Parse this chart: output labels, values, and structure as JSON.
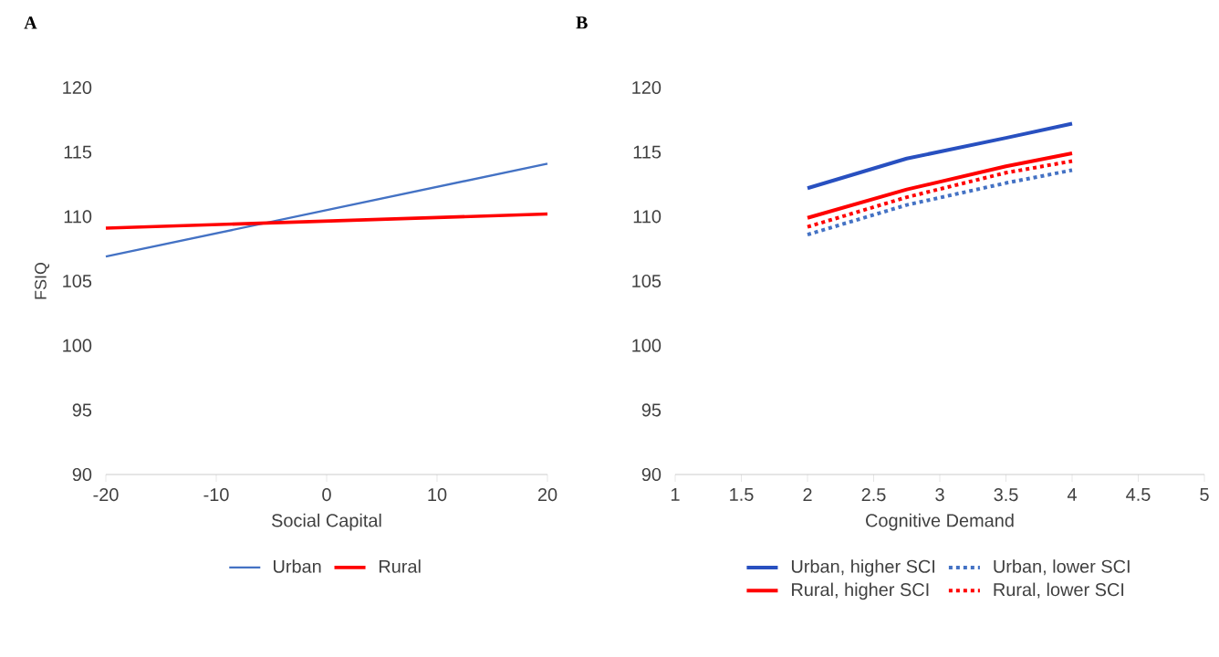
{
  "chart_data": [
    {
      "type": "line",
      "title": "A",
      "xlabel": "Social Capital",
      "ylabel": "FSIQ",
      "xlim": [
        -20,
        20
      ],
      "xticks": [
        -20,
        -10,
        0,
        10,
        20
      ],
      "ylim": [
        90,
        120
      ],
      "yticks": [
        90,
        95,
        100,
        105,
        110,
        115,
        120
      ],
      "grid": false,
      "legend": "bottom",
      "marker": "none",
      "x": [
        -20,
        20
      ],
      "series": [
        {
          "name": "Urban",
          "color": "#4472c4",
          "values": [
            106.9,
            114.1
          ]
        },
        {
          "name": "Rural",
          "color": "#ff0000",
          "values": [
            109.1,
            110.2
          ]
        }
      ]
    },
    {
      "type": "line",
      "title": "B",
      "xlabel": "Cognitive Demand",
      "xlim": [
        1,
        5
      ],
      "xticks": [
        1,
        1.5,
        2,
        2.5,
        3,
        3.5,
        4,
        4.5,
        5
      ],
      "ylim": [
        90,
        120
      ],
      "yticks": [
        90,
        95,
        100,
        105,
        110,
        115,
        120
      ],
      "grid": false,
      "legend": "bottom",
      "marker": "none",
      "x": [
        2,
        2.75,
        3.5,
        4
      ],
      "series": [
        {
          "name": "Urban, higher SCI",
          "color": "#2850c0",
          "line_style": "solid",
          "values": [
            112.2,
            114.5,
            116.1,
            117.2
          ]
        },
        {
          "name": "Urban, lower SCI",
          "color": "#4472c4",
          "line_style": "dotted",
          "values": [
            108.6,
            110.9,
            112.6,
            113.6
          ]
        },
        {
          "name": "Rural, higher SCI",
          "color": "#ff0000",
          "line_style": "solid",
          "values": [
            109.9,
            112.1,
            113.9,
            114.9
          ]
        },
        {
          "name": "Rural, lower SCI",
          "color": "#ff0000",
          "line_style": "dotted",
          "values": [
            109.2,
            111.5,
            113.4,
            114.3
          ]
        }
      ]
    }
  ]
}
